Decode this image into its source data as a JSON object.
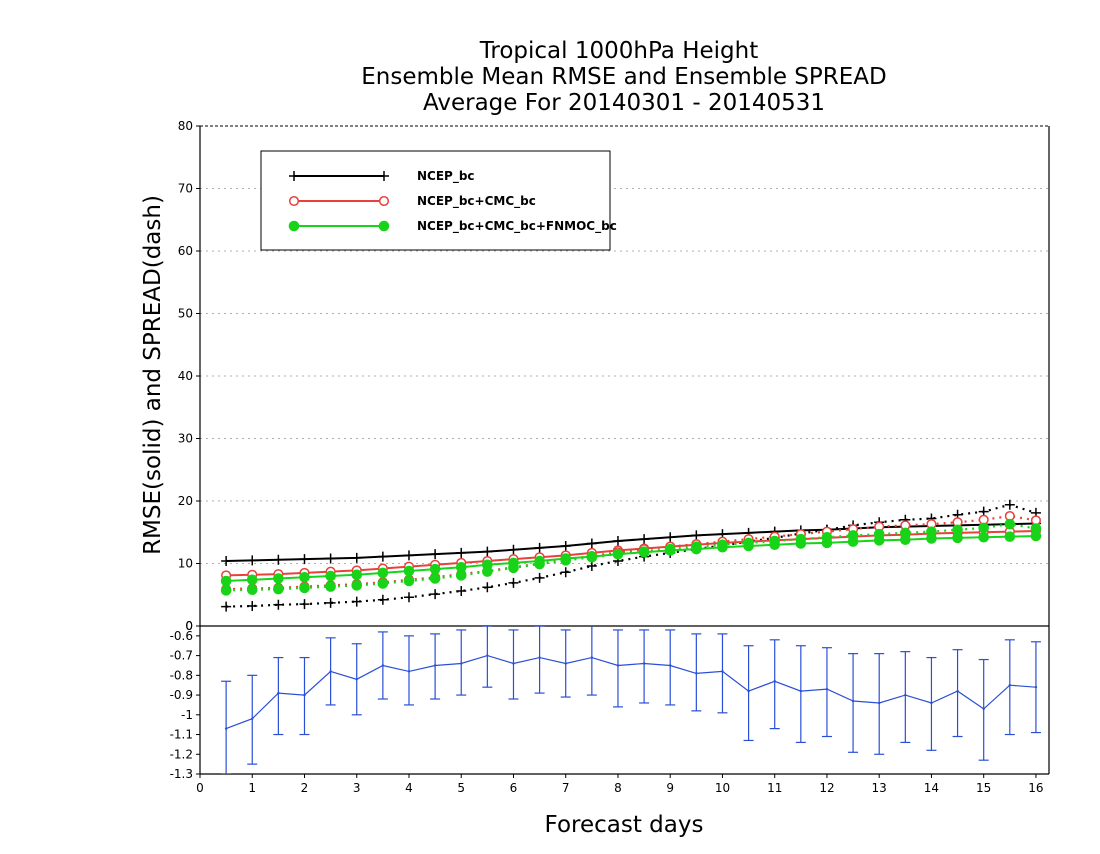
{
  "colors": {
    "ncep": "#000000",
    "ncep_cmc": "#e8413c",
    "ncep_cmc_fnmoc": "#18d418",
    "diff": "#2a4fd6",
    "grid": "#b0b0b0"
  },
  "chart_data": [
    {
      "type": "line",
      "title_lines": [
        "Tropical 1000hPa Height",
        "Ensemble Mean RMSE and Ensemble SPREAD",
        "Average For 20140301 - 20140531"
      ],
      "xlabel": "",
      "ylabel": "RMSE(solid) and SPREAD(dash)",
      "xlim": [
        0,
        16.25
      ],
      "ylim": [
        0,
        80
      ],
      "y_ticks": [
        "0",
        "10",
        "20",
        "30",
        "40",
        "50",
        "60",
        "70",
        "80"
      ],
      "grid": "horizontal dotted",
      "legend_position": "top-left",
      "x": [
        0.5,
        1,
        1.5,
        2,
        2.5,
        3,
        3.5,
        4,
        4.5,
        5,
        5.5,
        6,
        6.5,
        7,
        7.5,
        8,
        8.5,
        9,
        9.5,
        10,
        10.5,
        11,
        11.5,
        12,
        12.5,
        13,
        13.5,
        14,
        14.5,
        15,
        15.5,
        16
      ],
      "series": [
        {
          "name": "NCEP_bc",
          "line": "solid",
          "marker": "plus",
          "values": [
            10.4,
            10.5,
            10.6,
            10.7,
            10.8,
            10.9,
            11.1,
            11.3,
            11.5,
            11.7,
            11.9,
            12.2,
            12.5,
            12.8,
            13.2,
            13.6,
            13.9,
            14.2,
            14.5,
            14.7,
            14.9,
            15.1,
            15.3,
            15.4,
            15.6,
            15.8,
            15.9,
            16.0,
            16.1,
            16.2,
            16.3,
            16.4
          ]
        },
        {
          "name": "NCEP_bc",
          "line": "dashed",
          "marker": "plus",
          "values": [
            3.1,
            3.2,
            3.4,
            3.5,
            3.7,
            3.9,
            4.2,
            4.6,
            5.1,
            5.6,
            6.2,
            6.9,
            7.7,
            8.6,
            9.6,
            10.4,
            11.1,
            11.7,
            12.3,
            12.9,
            13.5,
            14.1,
            14.8,
            15.4,
            16.1,
            16.6,
            17.0,
            17.2,
            17.8,
            18.3,
            19.4,
            18.1
          ]
        },
        {
          "name": "NCEP_bc+CMC_bc",
          "line": "solid",
          "marker": "open-circle",
          "values": [
            8.1,
            8.2,
            8.3,
            8.5,
            8.7,
            8.9,
            9.2,
            9.5,
            9.8,
            10.1,
            10.4,
            10.7,
            11.0,
            11.3,
            11.7,
            12.1,
            12.4,
            12.7,
            13.0,
            13.3,
            13.5,
            13.7,
            13.9,
            14.1,
            14.3,
            14.5,
            14.6,
            14.8,
            14.9,
            15.0,
            15.1,
            15.2
          ]
        },
        {
          "name": "NCEP_bc+CMC_bc",
          "line": "dashed",
          "marker": "open-circle",
          "values": [
            5.9,
            6.0,
            6.1,
            6.3,
            6.5,
            6.7,
            7.0,
            7.4,
            7.8,
            8.3,
            8.8,
            9.4,
            10.0,
            10.6,
            11.2,
            11.8,
            12.3,
            12.7,
            13.1,
            13.5,
            13.9,
            14.3,
            14.7,
            15.1,
            15.5,
            15.9,
            16.1,
            16.3,
            16.6,
            17.0,
            17.6,
            16.9
          ]
        },
        {
          "name": "NCEP_bc+CMC_bc+FNMOC_bc",
          "line": "solid",
          "marker": "filled-circle",
          "values": [
            7.2,
            7.4,
            7.6,
            7.8,
            8.0,
            8.2,
            8.5,
            8.8,
            9.1,
            9.4,
            9.8,
            10.1,
            10.4,
            10.8,
            11.1,
            11.5,
            11.8,
            12.1,
            12.3,
            12.6,
            12.8,
            13.0,
            13.2,
            13.3,
            13.5,
            13.7,
            13.8,
            14.0,
            14.1,
            14.2,
            14.3,
            14.4
          ]
        },
        {
          "name": "NCEP_bc+CMC_bc+FNMOC_bc",
          "line": "dashed",
          "marker": "filled-circle",
          "values": [
            5.7,
            5.8,
            5.9,
            6.1,
            6.3,
            6.5,
            6.8,
            7.2,
            7.6,
            8.1,
            8.7,
            9.3,
            9.9,
            10.5,
            11.0,
            11.5,
            11.9,
            12.3,
            12.7,
            13.0,
            13.3,
            13.6,
            13.9,
            14.2,
            14.5,
            14.7,
            14.9,
            15.1,
            15.4,
            15.7,
            16.3,
            15.6
          ]
        }
      ]
    },
    {
      "type": "line",
      "subtype": "errorbar",
      "xlabel": "Forecast days",
      "ylabel": "",
      "xlim": [
        0,
        16.25
      ],
      "ylim": [
        -1.3,
        -0.55
      ],
      "y_ticks": [
        "-0.6",
        "-0.7",
        "-0.8",
        "-0.9",
        "-1",
        "-1.1",
        "-1.2",
        "-1.3"
      ],
      "x_ticks": [
        "0",
        "1",
        "2",
        "3",
        "4",
        "5",
        "6",
        "7",
        "8",
        "9",
        "10",
        "11",
        "12",
        "13",
        "14",
        "15",
        "16"
      ],
      "x": [
        0.5,
        1,
        1.5,
        2,
        2.5,
        3,
        3.5,
        4,
        4.5,
        5,
        5.5,
        6,
        6.5,
        7,
        7.5,
        8,
        8.5,
        9,
        9.5,
        10,
        10.5,
        11,
        11.5,
        12,
        12.5,
        13,
        13.5,
        14,
        14.5,
        15,
        15.5,
        16
      ],
      "values": [
        -1.07,
        -1.02,
        -0.89,
        -0.9,
        -0.78,
        -0.82,
        -0.75,
        -0.78,
        -0.75,
        -0.74,
        -0.7,
        -0.74,
        -0.71,
        -0.74,
        -0.71,
        -0.75,
        -0.74,
        -0.75,
        -0.79,
        -0.78,
        -0.88,
        -0.83,
        -0.88,
        -0.87,
        -0.93,
        -0.94,
        -0.9,
        -0.94,
        -0.88,
        -0.97,
        -0.85,
        -0.86
      ],
      "err_low": [
        -1.3,
        -1.25,
        -1.1,
        -1.1,
        -0.95,
        -1.0,
        -0.92,
        -0.95,
        -0.92,
        -0.9,
        -0.86,
        -0.92,
        -0.89,
        -0.91,
        -0.9,
        -0.96,
        -0.94,
        -0.95,
        -0.98,
        -0.99,
        -1.13,
        -1.07,
        -1.14,
        -1.11,
        -1.19,
        -1.2,
        -1.14,
        -1.18,
        -1.11,
        -1.23,
        -1.1,
        -1.09
      ],
      "err_high": [
        -0.83,
        -0.8,
        -0.71,
        -0.71,
        -0.61,
        -0.64,
        -0.58,
        -0.6,
        -0.59,
        -0.57,
        -0.55,
        -0.57,
        -0.55,
        -0.57,
        -0.54,
        -0.57,
        -0.57,
        -0.57,
        -0.59,
        -0.59,
        -0.65,
        -0.62,
        -0.65,
        -0.66,
        -0.69,
        -0.69,
        -0.68,
        -0.71,
        -0.67,
        -0.72,
        -0.62,
        -0.63
      ]
    }
  ]
}
